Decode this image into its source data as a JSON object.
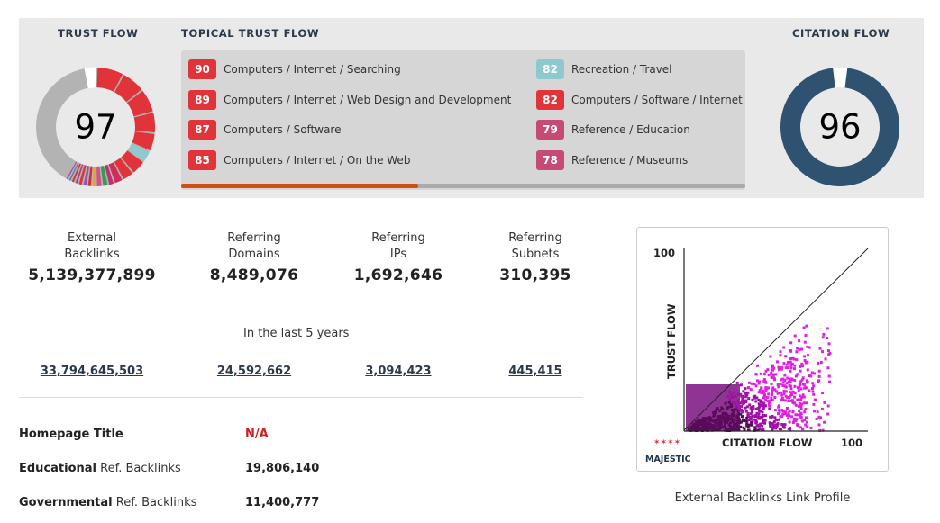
{
  "trust_flow": {
    "label": "TRUST FLOW",
    "value": "97",
    "segment_colors": [
      "#e0343a",
      "#e0343a",
      "#e0343a",
      "#e0343a",
      "#e0343a",
      "#8fc9d0",
      "#e0343a",
      "#e0343a",
      "#d02c5a",
      "#c42e6e",
      "#2e9e57",
      "#d64e8a",
      "#e5a628",
      "#d62e2e",
      "#8a5bb5",
      "#e0343a",
      "#b04080",
      "#c83c3c",
      "#6e6eb6",
      "#a64db0"
    ]
  },
  "topical_trust_flow": {
    "label": "TOPICAL TRUST FLOW",
    "progress": 0.42,
    "topics": [
      {
        "score": "90",
        "label": "Computers / Internet / Searching",
        "color": "#e0343a"
      },
      {
        "score": "89",
        "label": "Computers / Internet / Web Design and Development",
        "color": "#e0343a"
      },
      {
        "score": "87",
        "label": "Computers / Software",
        "color": "#e0343a"
      },
      {
        "score": "85",
        "label": "Computers / Internet / On the Web",
        "color": "#e0343a"
      },
      {
        "score": "82",
        "label": "Recreation / Travel",
        "color": "#8fc9d0"
      },
      {
        "score": "82",
        "label": "Computers / Software / Internet",
        "color": "#e0343a"
      },
      {
        "score": "79",
        "label": "Reference / Education",
        "color": "#c74a72"
      },
      {
        "score": "78",
        "label": "Reference / Museums",
        "color": "#c74a72"
      }
    ]
  },
  "citation_flow": {
    "label": "CITATION FLOW",
    "value": "96",
    "color": "#2e5270"
  },
  "stats": [
    {
      "label_line1": "External",
      "label_line2": "Backlinks",
      "value": "5,139,377,899",
      "historic": "33,794,645,503"
    },
    {
      "label_line1": "Referring",
      "label_line2": "Domains",
      "value": "8,489,076",
      "historic": "24,592,662"
    },
    {
      "label_line1": "Referring",
      "label_line2": "IPs",
      "value": "1,692,646",
      "historic": "3,094,423"
    },
    {
      "label_line1": "Referring",
      "label_line2": "Subnets",
      "value": "310,395",
      "historic": "445,415"
    }
  ],
  "period_label": "In the last 5 years",
  "info": {
    "homepage_title": {
      "label": "Homepage Title",
      "value": "N/A"
    },
    "educational": {
      "label_bold": "Educational",
      "label_rest": " Ref. Backlinks",
      "value": "19,806,140"
    },
    "governmental": {
      "label_bold": "Governmental",
      "label_rest": " Ref. Backlinks",
      "value": "11,400,777"
    }
  },
  "link_profile": {
    "caption": "External Backlinks Link Profile",
    "y_axis_label": "TRUST FLOW",
    "x_axis_label": "CITATION FLOW",
    "y_max_label": "100",
    "x_max_label": "100",
    "logo_text": "MAJESTIC",
    "dot_color": "#e020e0"
  }
}
